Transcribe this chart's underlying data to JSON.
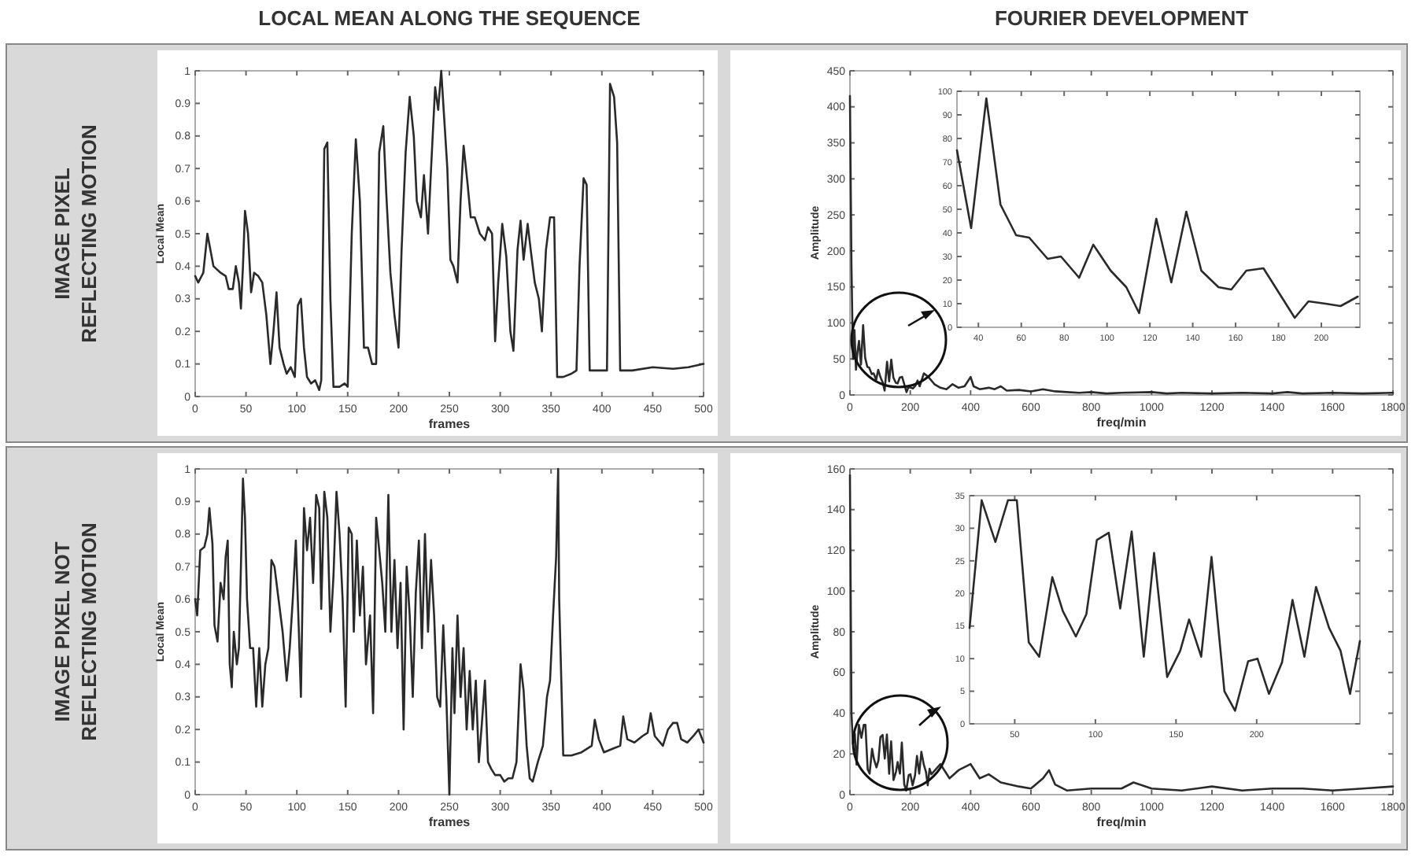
{
  "chart_data": [
    {
      "type": "line",
      "title": "LOCAL MEAN  ALONG THE SEQUENCE",
      "annotations": [
        "IMAGE PIXEL\nREFLECTING MOTION"
      ],
      "xlabel": "frames",
      "ylabel": "Local Mean",
      "xlim": [
        0,
        500
      ],
      "ylim": [
        0,
        1
      ],
      "xticks": [
        0,
        50,
        100,
        150,
        200,
        250,
        300,
        350,
        400,
        450,
        500
      ],
      "yticks": [
        0,
        0.1,
        0.2,
        0.3,
        0.4,
        0.5,
        0.6,
        0.7,
        0.8,
        0.9,
        1
      ],
      "x": [
        0,
        3,
        8,
        12,
        15,
        18,
        25,
        30,
        33,
        37,
        40,
        43,
        45,
        47,
        49,
        52,
        55,
        58,
        62,
        66,
        70,
        74,
        77,
        80,
        83,
        87,
        90,
        94,
        98,
        101,
        104,
        107,
        110,
        114,
        118,
        122,
        124,
        127,
        130,
        133,
        136,
        142,
        147,
        150,
        154,
        158,
        162,
        166,
        170,
        174,
        178,
        181,
        185,
        188,
        192,
        196,
        200,
        203,
        207,
        211,
        215,
        218,
        222,
        225,
        229,
        232,
        236,
        239,
        242,
        245,
        248,
        251,
        254,
        258,
        261,
        264,
        268,
        271,
        275,
        280,
        285,
        288,
        292,
        295,
        298,
        302,
        306,
        310,
        313,
        317,
        320,
        323,
        327,
        330,
        334,
        338,
        341,
        345,
        349,
        353,
        356,
        362,
        370,
        375,
        378,
        382,
        385,
        388,
        395,
        405,
        408,
        412,
        415,
        418,
        430,
        450,
        470,
        485,
        500
      ],
      "series": [
        {
          "color": "#2a2a2a",
          "values": [
            0.37,
            0.35,
            0.38,
            0.5,
            0.45,
            0.4,
            0.38,
            0.37,
            0.33,
            0.33,
            0.4,
            0.35,
            0.27,
            0.4,
            0.57,
            0.5,
            0.32,
            0.38,
            0.37,
            0.35,
            0.25,
            0.1,
            0.2,
            0.32,
            0.15,
            0.1,
            0.07,
            0.09,
            0.06,
            0.28,
            0.3,
            0.15,
            0.06,
            0.04,
            0.05,
            0.02,
            0.05,
            0.76,
            0.78,
            0.3,
            0.03,
            0.03,
            0.04,
            0.03,
            0.5,
            0.79,
            0.6,
            0.15,
            0.15,
            0.1,
            0.1,
            0.75,
            0.83,
            0.62,
            0.38,
            0.25,
            0.15,
            0.45,
            0.75,
            0.92,
            0.8,
            0.6,
            0.55,
            0.68,
            0.5,
            0.7,
            0.95,
            0.88,
            1,
            0.85,
            0.7,
            0.42,
            0.4,
            0.35,
            0.6,
            0.77,
            0.65,
            0.55,
            0.55,
            0.5,
            0.48,
            0.52,
            0.5,
            0.17,
            0.35,
            0.53,
            0.43,
            0.2,
            0.14,
            0.45,
            0.54,
            0.42,
            0.53,
            0.45,
            0.35,
            0.3,
            0.2,
            0.45,
            0.55,
            0.55,
            0.06,
            0.06,
            0.07,
            0.08,
            0.4,
            0.67,
            0.65,
            0.08,
            0.08,
            0.08,
            0.96,
            0.92,
            0.78,
            0.08,
            0.08,
            0.09,
            0.085,
            0.09,
            0.1
          ]
        }
      ]
    },
    {
      "type": "line",
      "title": "FOURIER DEVELOPMENT",
      "xlabel": "freq/min",
      "ylabel": "Amplitude",
      "xlim": [
        0,
        1800
      ],
      "ylim": [
        0,
        450
      ],
      "xticks": [
        0,
        200,
        400,
        600,
        800,
        1000,
        1200,
        1400,
        1600,
        1800
      ],
      "yticks": [
        0,
        50,
        100,
        150,
        200,
        250,
        300,
        350,
        400,
        450
      ],
      "x": [
        0,
        5,
        10,
        15,
        20,
        25,
        30,
        36.6,
        43.7,
        50.3,
        57.6,
        63.7,
        72.3,
        78.5,
        87,
        93.6,
        101.7,
        109,
        115,
        123,
        130,
        137,
        144,
        152,
        158,
        165,
        173,
        187.6,
        194,
        202,
        209,
        217,
        224,
        231,
        245,
        260,
        280,
        300,
        320,
        340,
        360,
        380,
        400,
        410,
        430,
        460,
        480,
        500,
        520,
        560,
        600,
        640,
        680,
        720,
        760,
        800,
        850,
        900,
        1000,
        1050,
        1100,
        1200,
        1300,
        1400,
        1450,
        1500,
        1600,
        1700,
        1800
      ],
      "series": [
        {
          "color": "#2a2a2a",
          "values": [
            415,
            180,
            50,
            90,
            35,
            60,
            75,
            42,
            97,
            52,
            39,
            38,
            29,
            30,
            21,
            35,
            24,
            17,
            6,
            46,
            19,
            49,
            24,
            17,
            16,
            24,
            25,
            4,
            11,
            10,
            9,
            13,
            20,
            12,
            30,
            25,
            15,
            10,
            8,
            15,
            10,
            12,
            25,
            12,
            8,
            10,
            8,
            12,
            6,
            7,
            5,
            8,
            5,
            4,
            3,
            4,
            2,
            3,
            4,
            2,
            3,
            2,
            3,
            2,
            4,
            2,
            3,
            2,
            3
          ]
        }
      ]
    },
    {
      "type": "line",
      "xlim": [
        30,
        218
      ],
      "ylim": [
        0,
        100
      ],
      "xticks": [
        40,
        60,
        80,
        100,
        120,
        140,
        160,
        180,
        200
      ],
      "yticks": [
        0,
        10,
        20,
        30,
        40,
        50,
        60,
        70,
        80,
        90,
        100
      ],
      "x": [
        30,
        36.6,
        43.7,
        50.3,
        57.6,
        63.7,
        72.3,
        78.5,
        87,
        93.6,
        101.7,
        109,
        115,
        123,
        130,
        137,
        144,
        152,
        158,
        165,
        173,
        187.6,
        194,
        202,
        209,
        217
      ],
      "series": [
        {
          "color": "#2a2a2a",
          "values": [
            75,
            42,
            97,
            52,
            39,
            38,
            29,
            30,
            21,
            35,
            24,
            17,
            6,
            46,
            19,
            49,
            24,
            17,
            16,
            24,
            25,
            4,
            11,
            10,
            9,
            13
          ]
        }
      ]
    },
    {
      "type": "line",
      "annotations": [
        "IMAGE PIXEL NOT\nREFLECTING MOTION"
      ],
      "xlabel": "frames",
      "ylabel": "Local Mean",
      "xlim": [
        0,
        500
      ],
      "ylim": [
        0,
        1
      ],
      "xticks": [
        0,
        50,
        100,
        150,
        200,
        250,
        300,
        350,
        400,
        450,
        500
      ],
      "yticks": [
        0,
        0.1,
        0.2,
        0.3,
        0.4,
        0.5,
        0.6,
        0.7,
        0.8,
        0.9,
        1
      ],
      "x": [
        0,
        2,
        5,
        9,
        12,
        14,
        17,
        19,
        22,
        25,
        28,
        30,
        32,
        34,
        36,
        38,
        41,
        43,
        45,
        47,
        49,
        51,
        54,
        57,
        60,
        63,
        66,
        69,
        72,
        75,
        78,
        82,
        86,
        90,
        93,
        96,
        99,
        102,
        104,
        107,
        110,
        113,
        116,
        119,
        122,
        124,
        127,
        130,
        133,
        136,
        139,
        142,
        145,
        148,
        151,
        154,
        156,
        159,
        162,
        165,
        168,
        172,
        175,
        178,
        181,
        184,
        187,
        190,
        193,
        196,
        199,
        202,
        205,
        208,
        211,
        214,
        217,
        220,
        223,
        226,
        229,
        232,
        235,
        238,
        241,
        244,
        247,
        250,
        253,
        255,
        258,
        261,
        264,
        267,
        270,
        273,
        276,
        279,
        282,
        285,
        288,
        291,
        295,
        300,
        304,
        308,
        312,
        316,
        320,
        323,
        326,
        329,
        332,
        337,
        342,
        346,
        349,
        352,
        355,
        357,
        358,
        362,
        370,
        380,
        390,
        393,
        397,
        402,
        410,
        418,
        421,
        425,
        432,
        440,
        445,
        448,
        452,
        460,
        465,
        470,
        474,
        478,
        484,
        490,
        495,
        500
      ],
      "series": [
        {
          "color": "#2a2a2a",
          "values": [
            0.6,
            0.55,
            0.75,
            0.76,
            0.8,
            0.88,
            0.77,
            0.52,
            0.47,
            0.65,
            0.6,
            0.73,
            0.78,
            0.4,
            0.33,
            0.5,
            0.4,
            0.45,
            0.7,
            0.97,
            0.85,
            0.6,
            0.45,
            0.45,
            0.27,
            0.45,
            0.27,
            0.4,
            0.45,
            0.72,
            0.7,
            0.6,
            0.5,
            0.35,
            0.45,
            0.6,
            0.78,
            0.5,
            0.3,
            0.88,
            0.75,
            0.85,
            0.65,
            0.92,
            0.88,
            0.57,
            0.93,
            0.85,
            0.5,
            0.67,
            0.93,
            0.8,
            0.6,
            0.27,
            0.82,
            0.8,
            0.5,
            0.78,
            0.55,
            0.7,
            0.4,
            0.55,
            0.25,
            0.85,
            0.75,
            0.65,
            0.5,
            0.92,
            0.5,
            0.72,
            0.45,
            0.65,
            0.2,
            0.7,
            0.55,
            0.3,
            0.62,
            0.78,
            0.45,
            0.8,
            0.5,
            0.72,
            0.55,
            0.3,
            0.27,
            0.52,
            0.3,
            0,
            0.45,
            0.25,
            0.55,
            0.3,
            0.45,
            0.2,
            0.38,
            0.2,
            0.35,
            0.1,
            0.22,
            0.35,
            0.1,
            0.08,
            0.06,
            0.06,
            0.04,
            0.05,
            0.05,
            0.1,
            0.4,
            0.32,
            0.15,
            0.05,
            0.04,
            0.1,
            0.15,
            0.3,
            0.35,
            0.55,
            0.73,
            1,
            0.6,
            0.12,
            0.12,
            0.13,
            0.15,
            0.23,
            0.17,
            0.13,
            0.14,
            0.15,
            0.24,
            0.17,
            0.16,
            0.18,
            0.19,
            0.25,
            0.18,
            0.15,
            0.2,
            0.22,
            0.22,
            0.17,
            0.16,
            0.18,
            0.2,
            0.16
          ]
        }
      ]
    },
    {
      "type": "line",
      "xlabel": "freq/min",
      "ylabel": "Amplitude",
      "xlim": [
        0,
        1800
      ],
      "ylim": [
        0,
        160
      ],
      "xticks": [
        0,
        200,
        400,
        600,
        800,
        1000,
        1200,
        1400,
        1600,
        1800
      ],
      "yticks": [
        0,
        20,
        40,
        60,
        80,
        100,
        120,
        140,
        160
      ],
      "x": [
        0,
        5,
        10,
        16,
        22,
        29.5,
        38,
        45.8,
        51.3,
        58.7,
        65.2,
        73.3,
        79.8,
        87.9,
        94.4,
        100.9,
        108.3,
        115.4,
        122.5,
        130,
        136.4,
        144.5,
        152.6,
        158.1,
        165.6,
        172,
        180,
        186.6,
        194.7,
        200.5,
        207.6,
        215.7,
        222.2,
        229.6,
        236.8,
        244.9,
        252,
        257.9,
        264,
        270,
        300,
        330,
        360,
        400,
        430,
        460,
        500,
        560,
        600,
        640,
        660,
        680,
        720,
        800,
        900,
        940,
        1000,
        1100,
        1200,
        1300,
        1400,
        1500,
        1600,
        1700,
        1800
      ],
      "series": [
        {
          "color": "#2a2a2a",
          "values": [
            157,
            40,
            25,
            30,
            14.7,
            34.3,
            27.9,
            34.3,
            34.3,
            12.5,
            10.3,
            22.5,
            17.3,
            13.4,
            16.8,
            28.2,
            29.3,
            17.7,
            29.5,
            10.3,
            26.2,
            7.2,
            11.2,
            16,
            10.3,
            25.6,
            5,
            2,
            9.6,
            10,
            4.6,
            9.4,
            19,
            10.3,
            21,
            14.7,
            11.2,
            4.6,
            12.7,
            10,
            15,
            8,
            12,
            15,
            8,
            10,
            6,
            4,
            3,
            8,
            12,
            5,
            2,
            3,
            3,
            6,
            3,
            2,
            4,
            2,
            3,
            3,
            2,
            3,
            4
          ]
        }
      ]
    },
    {
      "type": "line",
      "xlim": [
        22,
        264
      ],
      "ylim": [
        0,
        35
      ],
      "xticks": [
        50,
        100,
        150,
        200
      ],
      "yticks": [
        0,
        5,
        10,
        15,
        20,
        25,
        30,
        35
      ],
      "x": [
        22,
        29.5,
        38,
        45.8,
        51.3,
        58.7,
        65.2,
        73.3,
        79.8,
        87.9,
        94.4,
        100.9,
        108.3,
        115.4,
        122.5,
        130,
        136.4,
        144.5,
        152.6,
        158.1,
        165.6,
        172,
        180,
        186.6,
        194.7,
        200.5,
        207.6,
        215.7,
        222.2,
        229.6,
        236.8,
        244.9,
        252,
        257.9,
        264
      ],
      "series": [
        {
          "color": "#2a2a2a",
          "values": [
            14.7,
            34.3,
            27.9,
            34.3,
            34.3,
            12.5,
            10.3,
            22.5,
            17.3,
            13.4,
            16.8,
            28.2,
            29.3,
            17.7,
            29.5,
            10.3,
            26.2,
            7.2,
            11.2,
            16,
            10.3,
            25.6,
            5,
            2,
            9.6,
            10,
            4.6,
            9.4,
            19,
            10.3,
            21,
            14.7,
            11.2,
            4.6,
            12.7
          ]
        }
      ]
    }
  ]
}
